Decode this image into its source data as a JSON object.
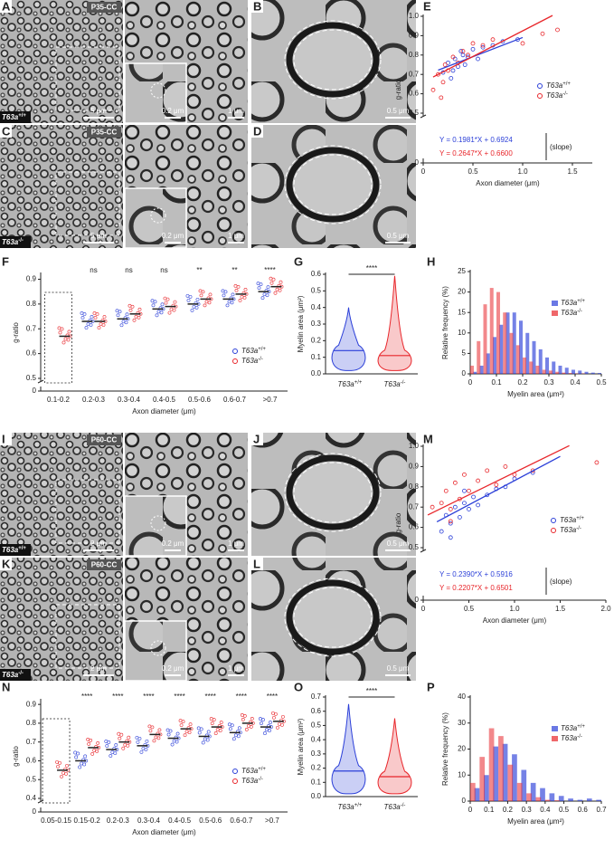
{
  "micrographs": [
    {
      "panel": "A",
      "region": "P35-CC",
      "gene": "T63a",
      "genotype": "+/+",
      "scales": [
        "5 μm",
        "0.2 μm",
        "1 μm"
      ]
    },
    {
      "panel": "B",
      "scales": [
        "0.5 μm"
      ]
    },
    {
      "panel": "C",
      "region": "P35-CC",
      "gene": "T63a",
      "genotype": "-/-",
      "scales": [
        "5 μm",
        "0.2 μm",
        "1 μm"
      ]
    },
    {
      "panel": "D",
      "scales": [
        "0.5 μm"
      ]
    },
    {
      "panel": "I",
      "region": "P60-CC",
      "gene": "T63a",
      "genotype": "+/+",
      "scales": [
        "2 μm",
        "0.2 μm",
        "1 μm"
      ]
    },
    {
      "panel": "J",
      "scales": [
        "0.5 μm"
      ]
    },
    {
      "panel": "K",
      "region": "P60-CC",
      "gene": "T63a",
      "genotype": "-/-",
      "scales": [
        "2 μm",
        "0.2 μm",
        "1 μm"
      ]
    },
    {
      "panel": "L",
      "scales": [
        "0.5 μm"
      ]
    }
  ],
  "chart_data": [
    {
      "panel": "E",
      "type": "scatter",
      "xlabel": "Axon diameter (μm)",
      "ylabel": "g-ratio",
      "xlim": [
        0,
        1.7
      ],
      "ylim": [
        0.5,
        1.0
      ],
      "axis_break": true,
      "xticks": [
        0,
        0.5,
        {
          "value": 1,
          "label": "1.0"
        },
        1.5
      ],
      "yticks": [
        0,
        0.5,
        0.6,
        0.7,
        0.8,
        0.9,
        {
          "value": 1,
          "label": "1.0"
        }
      ],
      "legend": "lower right",
      "annotation": "(slope)",
      "series": [
        {
          "name": "T63a",
          "superscript": "+/+",
          "color": "#2b3fd8",
          "x": [
            0.2,
            0.25,
            0.3,
            0.32,
            0.35,
            0.4,
            0.42,
            0.45,
            0.5,
            0.55,
            0.6,
            0.7,
            0.8,
            0.95,
            0.28,
            0.38
          ],
          "values": [
            0.71,
            0.76,
            0.72,
            0.78,
            0.74,
            0.8,
            0.75,
            0.79,
            0.83,
            0.78,
            0.84,
            0.85,
            0.87,
            0.88,
            0.68,
            0.82
          ],
          "fit": {
            "label": "Y = 0.1981*X + 0.6924",
            "slope": 0.1981,
            "intercept": 0.6924,
            "x": [
              0.15,
              1.0
            ]
          }
        },
        {
          "name": "T63a",
          "superscript": "-/-",
          "color": "#e8262b",
          "x": [
            0.1,
            0.15,
            0.2,
            0.22,
            0.25,
            0.3,
            0.35,
            0.4,
            0.45,
            0.5,
            0.6,
            0.7,
            1.0,
            1.2,
            1.35,
            0.18
          ],
          "values": [
            0.62,
            0.7,
            0.66,
            0.75,
            0.72,
            0.79,
            0.76,
            0.82,
            0.8,
            0.86,
            0.85,
            0.88,
            0.86,
            0.91,
            0.93,
            0.58
          ],
          "fit": {
            "label": "Y = 0.2647*X + 0.6600",
            "slope": 0.2647,
            "intercept": 0.66,
            "x": [
              0.1,
              1.3
            ]
          }
        }
      ]
    },
    {
      "panel": "F",
      "type": "dot",
      "xlabel": "Axon diameter (μm)",
      "ylabel": "g-ratio",
      "ylim": [
        0.5,
        0.92
      ],
      "axis_break": true,
      "yticks": [
        0,
        0.5,
        0.6,
        0.7,
        0.8,
        0.9
      ],
      "legend": "lower right",
      "categories": [
        "0.1-0.2",
        "0.2-0.3",
        "0.3-0.4",
        "0.4-0.5",
        "0.5-0.6",
        "0.6-0.7",
        ">0.7"
      ],
      "significance": [
        null,
        "ns",
        "ns",
        "ns",
        "**",
        "**",
        "****"
      ],
      "series": [
        {
          "name": "T63a",
          "superscript": "+/+",
          "color": "#2b3fd8",
          "values": [
            null,
            0.73,
            0.74,
            0.78,
            0.8,
            0.82,
            0.85
          ]
        },
        {
          "name": "T63a",
          "superscript": "-/-",
          "color": "#e8262b",
          "values": [
            0.67,
            0.73,
            0.76,
            0.79,
            0.82,
            0.84,
            0.87
          ]
        }
      ]
    },
    {
      "panel": "G",
      "type": "violin",
      "ylabel": "Myelin area (μm²)",
      "ylim": [
        0,
        0.6
      ],
      "yticks": [
        {
          "value": 0,
          "label": "0.0"
        },
        0.1,
        0.2,
        0.3,
        0.4,
        0.5,
        0.6
      ],
      "categories": [
        "T63a",
        "T63a"
      ],
      "category_superscripts": [
        "+/+",
        "-/-"
      ],
      "colors": [
        "#2b3fd8",
        "#e8262b"
      ],
      "values": [
        0.14,
        0.11
      ],
      "maxima": [
        0.4,
        0.59
      ],
      "minima": [
        0.02,
        0.02
      ],
      "significance": "****"
    },
    {
      "panel": "H",
      "type": "histogram",
      "xlabel": "Myelin area (μm²)",
      "ylabel": "Relative frequency (%)",
      "xlim": [
        0,
        0.5
      ],
      "ylim": [
        0,
        25
      ],
      "xticks": [
        0,
        0.1,
        0.2,
        0.3,
        0.4,
        0.5
      ],
      "yticks": [
        0,
        5,
        10,
        15,
        20,
        25
      ],
      "legend": "upper right",
      "bins": [
        0,
        0.025,
        0.05,
        0.075,
        0.1,
        0.125,
        0.15,
        0.175,
        0.2,
        0.225,
        0.25,
        0.275,
        0.3,
        0.325,
        0.35,
        0.375,
        0.4,
        0.425,
        0.45,
        0.475,
        0.5
      ],
      "series": [
        {
          "name": "T63a",
          "superscript": "+/+",
          "color": "#2b3fd8",
          "values": [
            0.5,
            2,
            5,
            9,
            12,
            15,
            15,
            13,
            10,
            8,
            6,
            4,
            3,
            2,
            1.5,
            1,
            0.8,
            0.5,
            0.3,
            0.2
          ]
        },
        {
          "name": "T63a",
          "superscript": "-/-",
          "color": "#e8262b",
          "values": [
            2,
            8,
            17,
            21,
            20,
            15,
            10,
            7,
            4,
            3,
            2,
            1,
            0.8,
            0.5,
            0.3,
            0.2,
            0.1,
            0.1,
            0,
            0
          ]
        }
      ]
    },
    {
      "panel": "M",
      "type": "scatter",
      "xlabel": "Axon diameter (μm)",
      "ylabel": "g-ratio",
      "xlim": [
        0,
        2.0
      ],
      "ylim": [
        0.5,
        1.0
      ],
      "axis_break": true,
      "xticks": [
        0,
        0.5,
        {
          "value": 1,
          "label": "1.0"
        },
        1.5,
        {
          "value": 2,
          "label": "2.0"
        }
      ],
      "yticks": [
        0,
        0.5,
        0.6,
        0.7,
        0.8,
        0.9,
        {
          "value": 1,
          "label": "1.0"
        }
      ],
      "legend": "lower right",
      "annotation": "(slope)",
      "series": [
        {
          "name": "T63a",
          "superscript": "+/+",
          "color": "#2b3fd8",
          "x": [
            0.2,
            0.25,
            0.3,
            0.35,
            0.4,
            0.45,
            0.5,
            0.55,
            0.6,
            0.7,
            0.8,
            0.9,
            1.0,
            1.2,
            0.3,
            0.45
          ],
          "values": [
            0.58,
            0.66,
            0.62,
            0.7,
            0.65,
            0.72,
            0.69,
            0.75,
            0.71,
            0.76,
            0.79,
            0.8,
            0.84,
            0.87,
            0.55,
            0.78
          ],
          "fit": {
            "label": "Y = 0.2390*X + 0.5916",
            "slope": 0.239,
            "intercept": 0.5916,
            "x": [
              0.15,
              1.5
            ]
          }
        },
        {
          "name": "T63a",
          "superscript": "-/-",
          "color": "#e8262b",
          "x": [
            0.1,
            0.2,
            0.25,
            0.3,
            0.35,
            0.4,
            0.45,
            0.5,
            0.6,
            0.7,
            0.8,
            0.9,
            1.0,
            1.2,
            1.9,
            0.3
          ],
          "values": [
            0.7,
            0.72,
            0.78,
            0.69,
            0.82,
            0.74,
            0.86,
            0.78,
            0.83,
            0.88,
            0.81,
            0.9,
            0.86,
            0.88,
            0.92,
            0.63
          ],
          "fit": {
            "label": "Y = 0.2207*X + 0.6501",
            "slope": 0.2207,
            "intercept": 0.6501,
            "x": [
              0.05,
              1.6
            ]
          }
        }
      ]
    },
    {
      "panel": "N",
      "type": "dot",
      "xlabel": "Axon diameter (μm)",
      "ylabel": "g-ratio",
      "ylim": [
        0.4,
        0.92
      ],
      "axis_break": true,
      "yticks": [
        0,
        0.4,
        0.5,
        0.6,
        0.7,
        0.8,
        0.9
      ],
      "legend": "lower right",
      "categories": [
        "0.05-0.15",
        "0.15-0.2",
        "0.2-0.3",
        "0.3-0.4",
        "0.4-0.5",
        "0.5-0.6",
        "0.6-0.7",
        ">0.7"
      ],
      "significance": [
        null,
        "****",
        "****",
        "****",
        "****",
        "****",
        "****",
        "****"
      ],
      "series": [
        {
          "name": "T63a",
          "superscript": "+/+",
          "color": "#2b3fd8",
          "values": [
            null,
            0.6,
            0.66,
            0.68,
            0.72,
            0.73,
            0.75,
            0.78
          ]
        },
        {
          "name": "T63a",
          "superscript": "-/-",
          "color": "#e8262b",
          "values": [
            0.55,
            0.67,
            0.7,
            0.74,
            0.77,
            0.78,
            0.8,
            0.81
          ]
        }
      ]
    },
    {
      "panel": "O",
      "type": "violin",
      "ylabel": "Myelin area (μm²)",
      "ylim": [
        0,
        0.7
      ],
      "yticks": [
        {
          "value": 0,
          "label": "0.0"
        },
        0.1,
        0.2,
        0.3,
        0.4,
        0.5,
        0.6,
        0.7
      ],
      "categories": [
        "T63a",
        "T63a"
      ],
      "category_superscripts": [
        "+/+",
        "-/-"
      ],
      "colors": [
        "#2b3fd8",
        "#e8262b"
      ],
      "values": [
        0.18,
        0.14
      ],
      "maxima": [
        0.65,
        0.55
      ],
      "minima": [
        0.02,
        0.02
      ],
      "significance": "****"
    },
    {
      "panel": "P",
      "type": "histogram",
      "xlabel": "Myelin area (μm²)",
      "ylabel": "Relative frequency (%)",
      "xlim": [
        0,
        0.7
      ],
      "ylim": [
        0,
        40
      ],
      "xticks": [
        0,
        0.1,
        0.2,
        0.3,
        0.4,
        0.5,
        0.6,
        0.7
      ],
      "yticks": [
        0,
        10,
        20,
        30,
        40
      ],
      "legend": "upper right",
      "bins": [
        0,
        0.05,
        0.1,
        0.15,
        0.2,
        0.25,
        0.3,
        0.35,
        0.4,
        0.45,
        0.5,
        0.55,
        0.6,
        0.65,
        0.7
      ],
      "series": [
        {
          "name": "T63a",
          "superscript": "+/+",
          "color": "#2b3fd8",
          "values": [
            5,
            10,
            21,
            22,
            18,
            12,
            7,
            5,
            3,
            2,
            1,
            0.5,
            1,
            0.5
          ]
        },
        {
          "name": "T63a",
          "superscript": "-/-",
          "color": "#e8262b",
          "values": [
            7,
            17,
            28,
            25,
            14,
            7,
            3,
            1.5,
            0.5,
            0.3,
            0,
            0,
            0,
            0
          ]
        }
      ]
    }
  ]
}
